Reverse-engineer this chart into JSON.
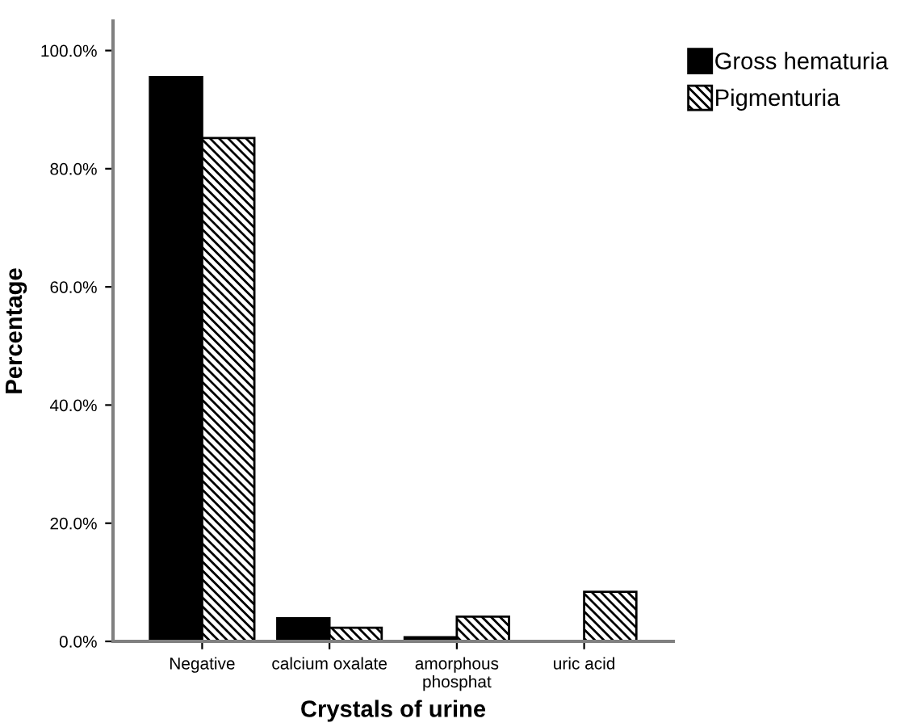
{
  "chart_data": {
    "type": "bar",
    "xlabel": "Crystals of urine",
    "ylabel": "Percentage",
    "categories": [
      "Negative",
      "calcium oxalate",
      "amorphous\nphosphat",
      "uric acid"
    ],
    "series": [
      {
        "name": "Gross hematuria",
        "color": "#000000",
        "values": [
          95.5,
          3.9,
          0.7,
          0
        ]
      },
      {
        "name": "Pigmenturia",
        "color": "#000000",
        "values": [
          85.2,
          2.3,
          4.2,
          8.4
        ]
      }
    ],
    "ylim": [
      0,
      105
    ],
    "yticks": [
      {
        "value": 0,
        "label": "0.0%"
      },
      {
        "value": 20,
        "label": "20.0%"
      },
      {
        "value": 40,
        "label": "40.0%"
      },
      {
        "value": 60,
        "label": "60.0%"
      },
      {
        "value": 80,
        "label": "80.0%"
      },
      {
        "value": 100,
        "label": "100.0%"
      }
    ],
    "grid": false,
    "legend": "top right"
  }
}
